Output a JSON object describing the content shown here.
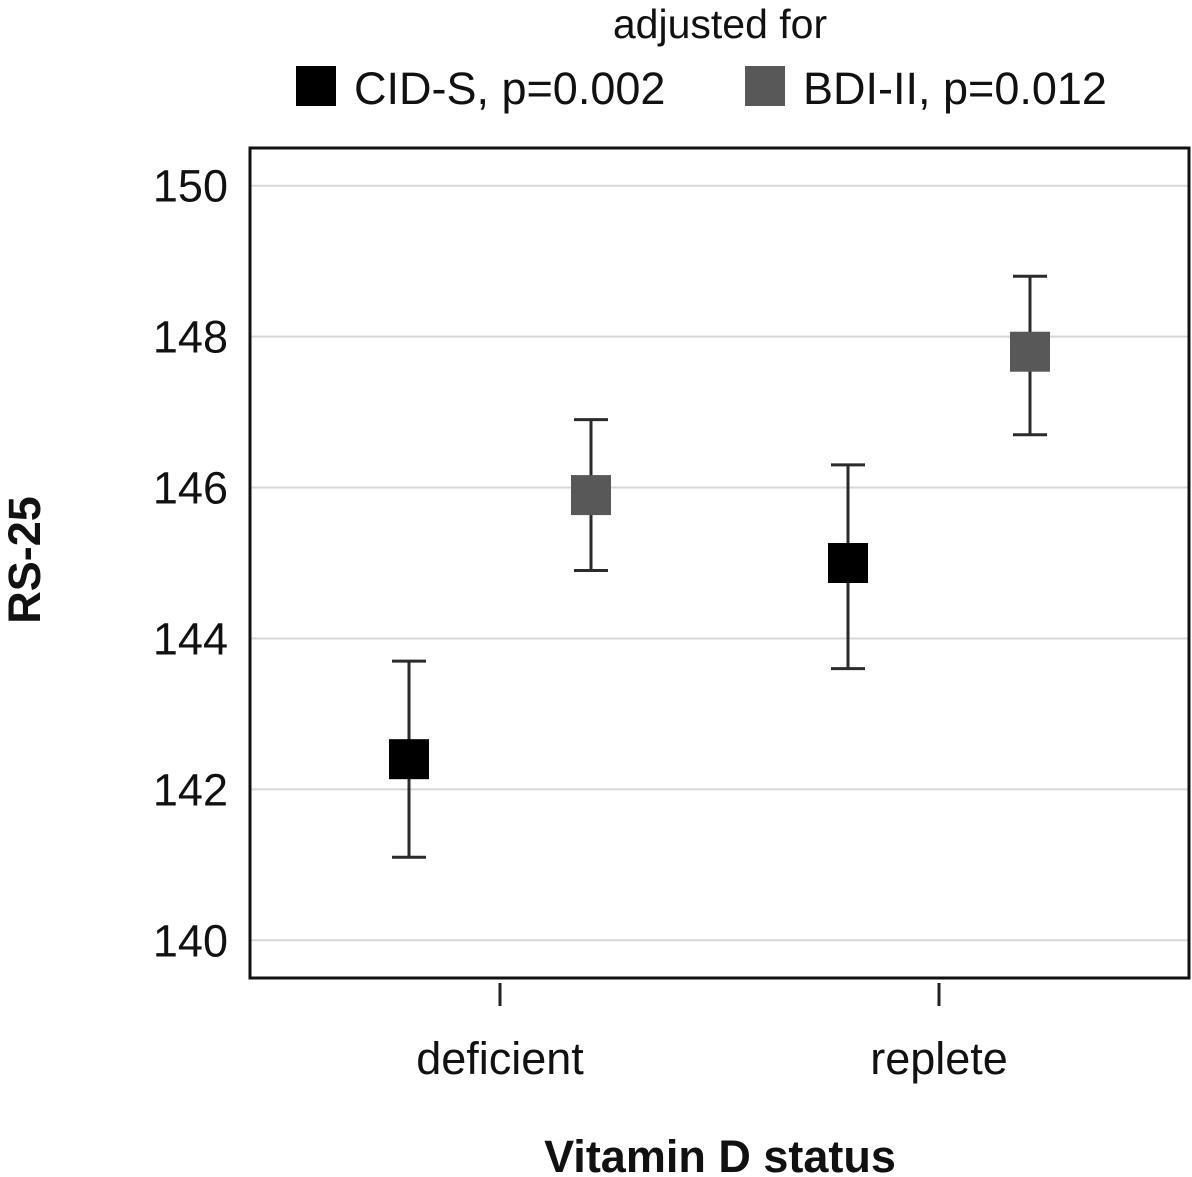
{
  "chart_data": {
    "type": "scatter",
    "legend_title": "adjusted for",
    "legend_placement": "top",
    "xlabel": "Vitamin D status",
    "ylabel": "RS-25",
    "categories": [
      "deficient",
      "replete"
    ],
    "ylim": [
      139.5,
      150.5
    ],
    "yticks": [
      140,
      142,
      144,
      146,
      148,
      150
    ],
    "grid": "horizontal",
    "series": [
      {
        "name": "CID-S, p=0.002",
        "color": "#000000",
        "values": [
          142.4,
          145.0
        ],
        "ci_low": [
          141.1,
          143.6
        ],
        "ci_high": [
          143.7,
          146.3
        ]
      },
      {
        "name": "BDI-II, p=0.012",
        "color": "#585858",
        "values": [
          145.9,
          147.8
        ],
        "ci_low": [
          144.9,
          146.7
        ],
        "ci_high": [
          146.9,
          148.8
        ]
      }
    ]
  }
}
